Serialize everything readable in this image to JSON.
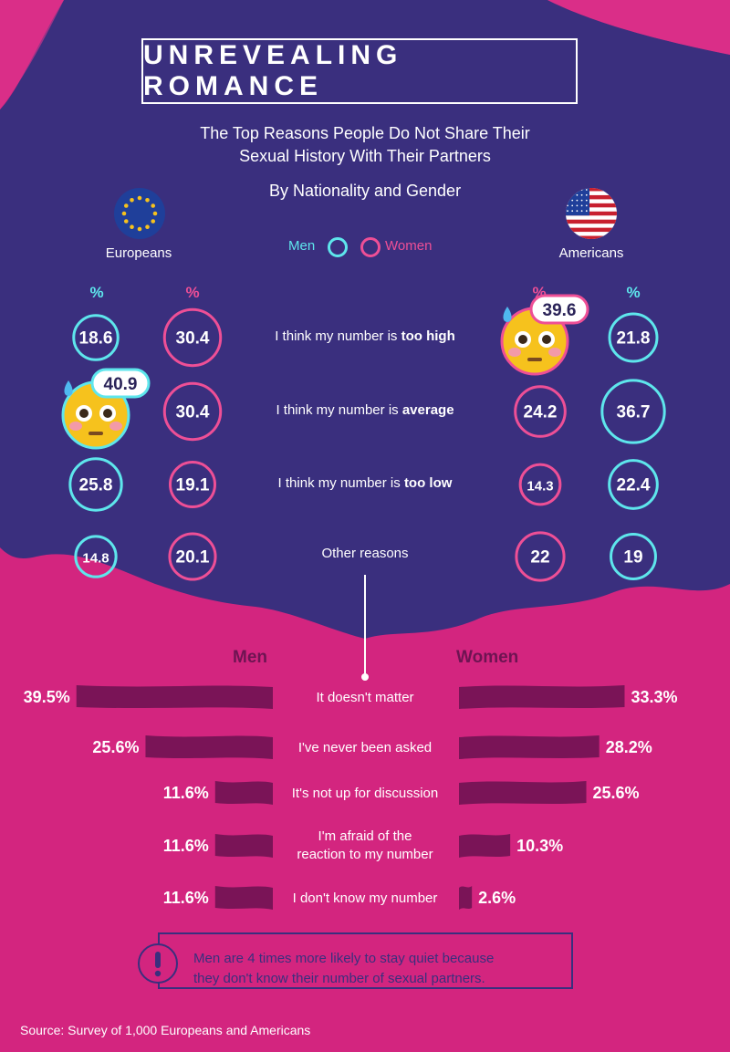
{
  "header": {
    "title": "UNREVEALING ROMANCE",
    "subtitle_line1": "The Top Reasons People Do Not Share Their",
    "subtitle_line2": "Sexual History With Their Partners",
    "byline": "By Nationality and Gender"
  },
  "groups": {
    "europeans": "Europeans",
    "americans": "Americans"
  },
  "legend": {
    "men": "Men",
    "women": "Women"
  },
  "pct_symbol": "%",
  "colors": {
    "top_bg": "#3a2f7e",
    "pink": "#d3257f",
    "men": "#5ee6ec",
    "women": "#ee4f96",
    "bar": "#7a1457",
    "emoji": "#f6c21d"
  },
  "chart_data": [
    {
      "type": "table",
      "rows": [
        "I think my number is too high",
        "I think my number is average",
        "I think my number is too low",
        "Other reasons"
      ],
      "row_parts": [
        {
          "plain": "I think my number is ",
          "bold": "too high"
        },
        {
          "plain": "I think my number is ",
          "bold": "average"
        },
        {
          "plain": "I think my number is ",
          "bold": "too low"
        },
        {
          "plain": "Other reasons",
          "bold": ""
        }
      ],
      "series": [
        {
          "group": "Europeans",
          "gender": "Men",
          "values": [
            18.6,
            40.9,
            25.8,
            14.8
          ]
        },
        {
          "group": "Europeans",
          "gender": "Women",
          "values": [
            30.4,
            30.4,
            19.1,
            20.1
          ]
        },
        {
          "group": "Americans",
          "gender": "Women",
          "values": [
            39.6,
            24.2,
            14.3,
            22
          ]
        },
        {
          "group": "Americans",
          "gender": "Men",
          "values": [
            21.8,
            36.7,
            22.4,
            19
          ]
        }
      ],
      "labels": [
        [
          "18.6",
          "40.9",
          "25.8",
          "14.8"
        ],
        [
          "30.4",
          "30.4",
          "19.1",
          "20.1"
        ],
        [
          "39.6",
          "24.2",
          "14.3",
          "22"
        ],
        [
          "21.8",
          "36.7",
          "22.4",
          "19"
        ]
      ],
      "highlight": [
        [
          0,
          1
        ],
        [
          2,
          0
        ]
      ]
    },
    {
      "type": "bar",
      "title": "",
      "categories": [
        "It doesn't matter",
        "I've never been asked",
        "It's not up for discussion",
        "I'm afraid of the reaction to my number",
        "I don't know my number"
      ],
      "series": [
        {
          "name": "Men",
          "values": [
            39.5,
            25.6,
            11.6,
            11.6,
            11.6
          ],
          "labels": [
            "39.5%",
            "25.6%",
            "11.6%",
            "11.6%",
            "11.6%"
          ]
        },
        {
          "name": "Women",
          "values": [
            33.3,
            28.2,
            25.6,
            10.3,
            2.6
          ],
          "labels": [
            "33.3%",
            "28.2%",
            "25.6%",
            "10.3%",
            "2.6%"
          ]
        }
      ],
      "category_lines": [
        [
          "It doesn't matter"
        ],
        [
          "I've never been asked"
        ],
        [
          "It's not up for discussion"
        ],
        [
          "I'm afraid of the",
          "reaction to my number"
        ],
        [
          "I don't know my number"
        ]
      ]
    }
  ],
  "note": {
    "icon": "exclamation-icon",
    "line1": "Men are 4 times more likely to stay quiet because",
    "line2": "they don't know their number of sexual partners."
  },
  "source": "Source: Survey of 1,000 Europeans and Americans"
}
